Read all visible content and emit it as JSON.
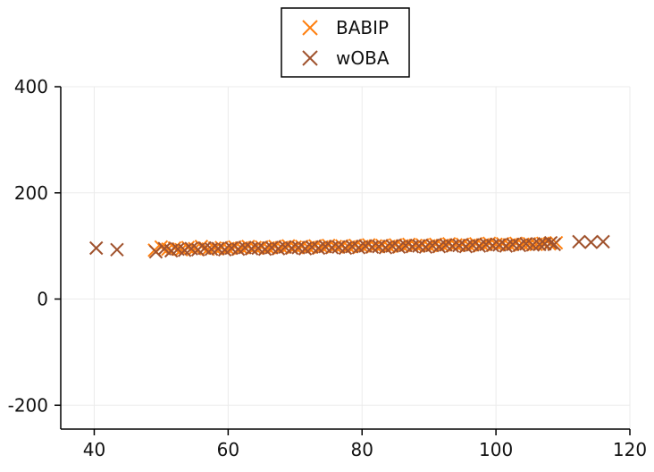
{
  "chart_data": {
    "type": "scatter",
    "title": "",
    "xlabel": "",
    "ylabel": "",
    "xlim": [
      35,
      120
    ],
    "ylim": [
      -245,
      400
    ],
    "x_ticks": [
      40,
      60,
      80,
      100,
      120
    ],
    "y_ticks": [
      -200,
      0,
      200,
      400
    ],
    "grid": true,
    "legend": {
      "position": "top-center"
    },
    "series": [
      {
        "name": "BABIP",
        "color": "#ff7f0e",
        "marker": "x",
        "points": [
          [
            49,
            92
          ],
          [
            50,
            98
          ],
          [
            51,
            94
          ],
          [
            52,
            96
          ],
          [
            53,
            93
          ],
          [
            54,
            97
          ],
          [
            55,
            95
          ],
          [
            56,
            99
          ],
          [
            57,
            94
          ],
          [
            58,
            96
          ],
          [
            59,
            97
          ],
          [
            60,
            95
          ],
          [
            61,
            98
          ],
          [
            62,
            96
          ],
          [
            63,
            99
          ],
          [
            64,
            97
          ],
          [
            65,
            98
          ],
          [
            66,
            96
          ],
          [
            67,
            99
          ],
          [
            68,
            97
          ],
          [
            69,
            100
          ],
          [
            70,
            98
          ],
          [
            71,
            99
          ],
          [
            72,
            97
          ],
          [
            73,
            100
          ],
          [
            74,
            98
          ],
          [
            75,
            101
          ],
          [
            76,
            99
          ],
          [
            77,
            100
          ],
          [
            78,
            98
          ],
          [
            79,
            101
          ],
          [
            80,
            99
          ],
          [
            81,
            102
          ],
          [
            82,
            100
          ],
          [
            83,
            101
          ],
          [
            84,
            99
          ],
          [
            85,
            102
          ],
          [
            86,
            100
          ],
          [
            87,
            103
          ],
          [
            88,
            101
          ],
          [
            89,
            102
          ],
          [
            90,
            100
          ],
          [
            91,
            103
          ],
          [
            92,
            101
          ],
          [
            93,
            104
          ],
          [
            94,
            102
          ],
          [
            95,
            103
          ],
          [
            96,
            101
          ],
          [
            97,
            104
          ],
          [
            98,
            102
          ],
          [
            99,
            105
          ],
          [
            100,
            103
          ],
          [
            101,
            104
          ],
          [
            102,
            102
          ],
          [
            103,
            105
          ],
          [
            104,
            103
          ],
          [
            105,
            104
          ],
          [
            106,
            103
          ],
          [
            107,
            105
          ],
          [
            108,
            104
          ],
          [
            109,
            106
          ]
        ]
      },
      {
        "name": "wOBA",
        "color": "#a0522d",
        "marker": "x",
        "points": [
          [
            40.3,
            96
          ],
          [
            43.4,
            93
          ],
          [
            49.2,
            89
          ],
          [
            50.5,
            95
          ],
          [
            51.5,
            91
          ],
          [
            52.5,
            94
          ],
          [
            53.5,
            92
          ],
          [
            54.5,
            95
          ],
          [
            55.5,
            93
          ],
          [
            56.5,
            96
          ],
          [
            57.5,
            94
          ],
          [
            58.5,
            95
          ],
          [
            59.5,
            93
          ],
          [
            60.5,
            96
          ],
          [
            61.5,
            94
          ],
          [
            62.5,
            97
          ],
          [
            63.5,
            95
          ],
          [
            64.5,
            96
          ],
          [
            65.5,
            94
          ],
          [
            66.5,
            97
          ],
          [
            67.5,
            95
          ],
          [
            68.5,
            98
          ],
          [
            69.5,
            96
          ],
          [
            70.5,
            97
          ],
          [
            71.5,
            95
          ],
          [
            72.5,
            98
          ],
          [
            73.5,
            96
          ],
          [
            74.5,
            99
          ],
          [
            75.5,
            97
          ],
          [
            76.5,
            98
          ],
          [
            77.5,
            96
          ],
          [
            78.5,
            99
          ],
          [
            79.5,
            97
          ],
          [
            80.5,
            100
          ],
          [
            81.5,
            98
          ],
          [
            82.5,
            99
          ],
          [
            83.5,
            97
          ],
          [
            84.5,
            100
          ],
          [
            85.5,
            98
          ],
          [
            86.5,
            101
          ],
          [
            87.5,
            99
          ],
          [
            88.5,
            100
          ],
          [
            89.5,
            98
          ],
          [
            90.5,
            101
          ],
          [
            91.5,
            99
          ],
          [
            92.5,
            102
          ],
          [
            93.5,
            100
          ],
          [
            94.5,
            101
          ],
          [
            95.5,
            99
          ],
          [
            96.5,
            102
          ],
          [
            97.5,
            100
          ],
          [
            98.5,
            103
          ],
          [
            99.5,
            101
          ],
          [
            100.5,
            102
          ],
          [
            101.5,
            100
          ],
          [
            102.5,
            103
          ],
          [
            103.5,
            101
          ],
          [
            104.5,
            104
          ],
          [
            105.5,
            102
          ],
          [
            106.5,
            103
          ],
          [
            107.3,
            104
          ],
          [
            108.2,
            106
          ],
          [
            108.7,
            103
          ],
          [
            112.4,
            108
          ],
          [
            114.2,
            107
          ],
          [
            116.0,
            108
          ]
        ]
      }
    ]
  }
}
